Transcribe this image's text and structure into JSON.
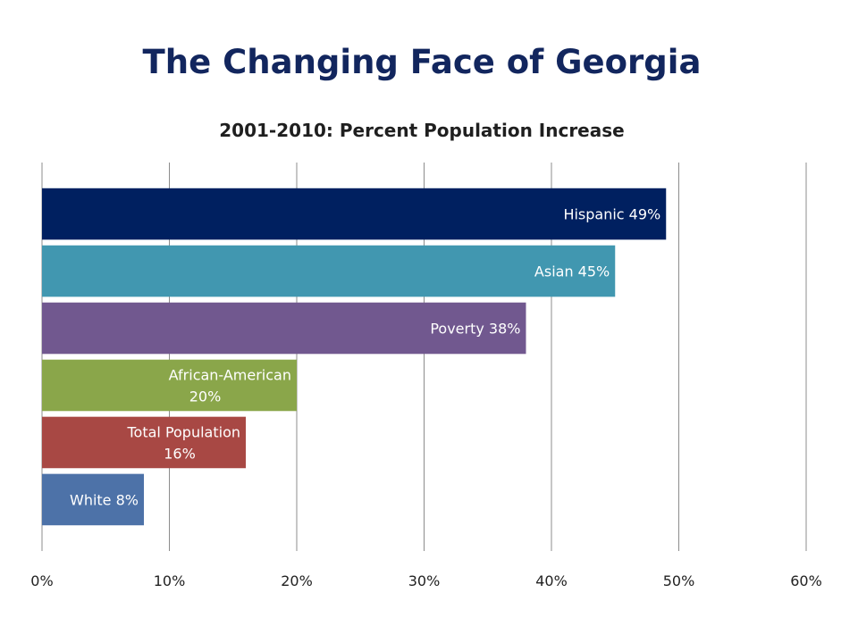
{
  "page": {
    "title": "The Changing Face of Georgia"
  },
  "chart_data": {
    "type": "bar",
    "orientation": "horizontal",
    "title": "2001-2010:  Percent Population Increase",
    "xlabel": "",
    "ylabel": "",
    "xlim": [
      0,
      60
    ],
    "x_ticks": [
      "0%",
      "10%",
      "20%",
      "30%",
      "40%",
      "50%",
      "60%"
    ],
    "grid": true,
    "legend": "none",
    "categories": [
      "Hispanic",
      "Asian",
      "Poverty",
      "African-American",
      "Total Population",
      "White"
    ],
    "values": [
      49,
      45,
      38,
      20,
      16,
      8
    ],
    "data_labels": [
      [
        "Hispanic 49%"
      ],
      [
        "Asian 45%"
      ],
      [
        "Poverty 38%"
      ],
      [
        "African-American",
        "20%"
      ],
      [
        "Total Population",
        "16%"
      ],
      [
        "White 8%"
      ]
    ],
    "colors": [
      "#002060",
      "#4197b0",
      "#71588f",
      "#8aa64a",
      "#a84844",
      "#4d72a8"
    ]
  }
}
